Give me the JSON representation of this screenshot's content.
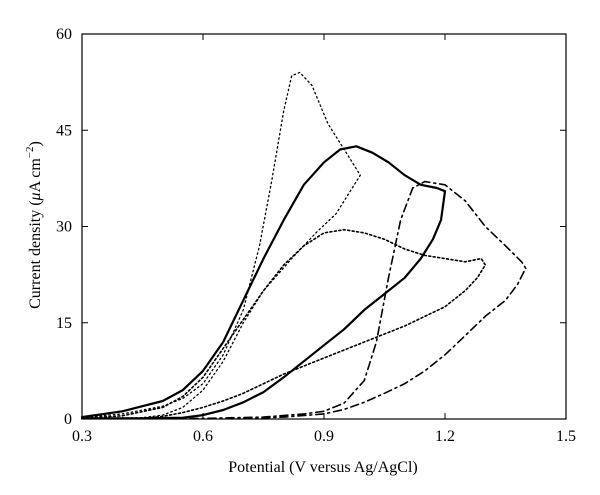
{
  "chart_data": {
    "type": "line",
    "xlabel": "Potential (V versus Ag/AgCl)",
    "ylabel_parts": {
      "before": "Current density (",
      "mu": "μ",
      "unit": "A cm",
      "exp": "−2",
      "after": ")"
    },
    "xlim": [
      0.3,
      1.5
    ],
    "ylim": [
      0,
      60
    ],
    "xticks": [
      "0.3",
      "0.6",
      "0.9",
      "1.2",
      "1.5"
    ],
    "yticks": [
      "0",
      "15",
      "30",
      "45",
      "60"
    ],
    "grid": false,
    "series": [
      {
        "style": "short-dotted",
        "points": [
          [
            0.3,
            0.2
          ],
          [
            0.4,
            0.8
          ],
          [
            0.5,
            2.0
          ],
          [
            0.55,
            3.2
          ],
          [
            0.6,
            5.5
          ],
          [
            0.65,
            10
          ],
          [
            0.7,
            17
          ],
          [
            0.74,
            27
          ],
          [
            0.77,
            37
          ],
          [
            0.8,
            48
          ],
          [
            0.82,
            53.5
          ],
          [
            0.84,
            54
          ],
          [
            0.87,
            52
          ],
          [
            0.91,
            46
          ],
          [
            0.95,
            42
          ],
          [
            0.97,
            40
          ],
          [
            0.99,
            38
          ],
          [
            0.96,
            35
          ],
          [
            0.93,
            32
          ],
          [
            0.88,
            29
          ],
          [
            0.82,
            25
          ],
          [
            0.75,
            20
          ],
          [
            0.7,
            15
          ],
          [
            0.65,
            9
          ],
          [
            0.6,
            4.5
          ],
          [
            0.55,
            1.8
          ],
          [
            0.5,
            0.6
          ],
          [
            0.45,
            0.2
          ],
          [
            0.3,
            0.1
          ]
        ]
      },
      {
        "style": "solid",
        "points": [
          [
            0.3,
            0.3
          ],
          [
            0.4,
            1.2
          ],
          [
            0.5,
            2.8
          ],
          [
            0.55,
            4.5
          ],
          [
            0.6,
            7.5
          ],
          [
            0.65,
            12
          ],
          [
            0.7,
            18.5
          ],
          [
            0.75,
            25
          ],
          [
            0.8,
            31
          ],
          [
            0.85,
            36.5
          ],
          [
            0.9,
            40
          ],
          [
            0.94,
            42
          ],
          [
            0.98,
            42.5
          ],
          [
            1.02,
            41.5
          ],
          [
            1.06,
            40
          ],
          [
            1.1,
            38
          ],
          [
            1.14,
            36.5
          ],
          [
            1.18,
            36
          ],
          [
            1.2,
            35.5
          ],
          [
            1.19,
            31
          ],
          [
            1.17,
            28
          ],
          [
            1.14,
            25
          ],
          [
            1.1,
            22
          ],
          [
            1.05,
            19.5
          ],
          [
            1.0,
            17
          ],
          [
            0.95,
            14
          ],
          [
            0.9,
            11.5
          ],
          [
            0.85,
            9
          ],
          [
            0.8,
            6.5
          ],
          [
            0.75,
            4.2
          ],
          [
            0.7,
            2.6
          ],
          [
            0.65,
            1.4
          ],
          [
            0.6,
            0.6
          ],
          [
            0.55,
            0.2
          ],
          [
            0.45,
            0.1
          ],
          [
            0.3,
            0.1
          ]
        ]
      },
      {
        "style": "dotted",
        "points": [
          [
            0.3,
            0.1
          ],
          [
            0.4,
            0.5
          ],
          [
            0.5,
            1.8
          ],
          [
            0.55,
            3.5
          ],
          [
            0.6,
            6.5
          ],
          [
            0.65,
            11
          ],
          [
            0.7,
            15.5
          ],
          [
            0.75,
            20
          ],
          [
            0.8,
            24
          ],
          [
            0.85,
            27
          ],
          [
            0.9,
            29
          ],
          [
            0.95,
            29.5
          ],
          [
            1.0,
            29
          ],
          [
            1.05,
            28
          ],
          [
            1.1,
            26.5
          ],
          [
            1.15,
            25.5
          ],
          [
            1.2,
            25
          ],
          [
            1.25,
            24.5
          ],
          [
            1.29,
            25
          ],
          [
            1.3,
            24
          ],
          [
            1.28,
            22
          ],
          [
            1.25,
            20
          ],
          [
            1.2,
            17.5
          ],
          [
            1.1,
            14.5
          ],
          [
            1.0,
            12
          ],
          [
            0.9,
            9.5
          ],
          [
            0.8,
            7
          ],
          [
            0.7,
            4
          ],
          [
            0.65,
            2.8
          ],
          [
            0.6,
            1.8
          ],
          [
            0.55,
            1.0
          ],
          [
            0.5,
            0.4
          ],
          [
            0.45,
            0.1
          ],
          [
            0.3,
            0.05
          ]
        ]
      },
      {
        "style": "dash-dot",
        "points": [
          [
            0.3,
            0.05
          ],
          [
            0.6,
            0.1
          ],
          [
            0.75,
            0.3
          ],
          [
            0.85,
            0.8
          ],
          [
            0.9,
            1.2
          ],
          [
            0.95,
            2.5
          ],
          [
            1.0,
            6
          ],
          [
            1.03,
            12
          ],
          [
            1.06,
            22
          ],
          [
            1.09,
            31
          ],
          [
            1.12,
            36
          ],
          [
            1.15,
            37
          ],
          [
            1.2,
            36.5
          ],
          [
            1.25,
            34
          ],
          [
            1.3,
            30
          ],
          [
            1.35,
            27
          ],
          [
            1.39,
            24.5
          ],
          [
            1.4,
            23.5
          ],
          [
            1.38,
            21
          ],
          [
            1.35,
            18.5
          ],
          [
            1.3,
            16
          ],
          [
            1.25,
            13
          ],
          [
            1.2,
            10
          ],
          [
            1.15,
            7.5
          ],
          [
            1.1,
            5.5
          ],
          [
            1.05,
            4
          ],
          [
            1.0,
            2.6
          ],
          [
            0.95,
            1.5
          ],
          [
            0.9,
            0.8
          ],
          [
            0.8,
            0.3
          ],
          [
            0.7,
            0.1
          ],
          [
            0.3,
            0.05
          ]
        ]
      }
    ]
  }
}
